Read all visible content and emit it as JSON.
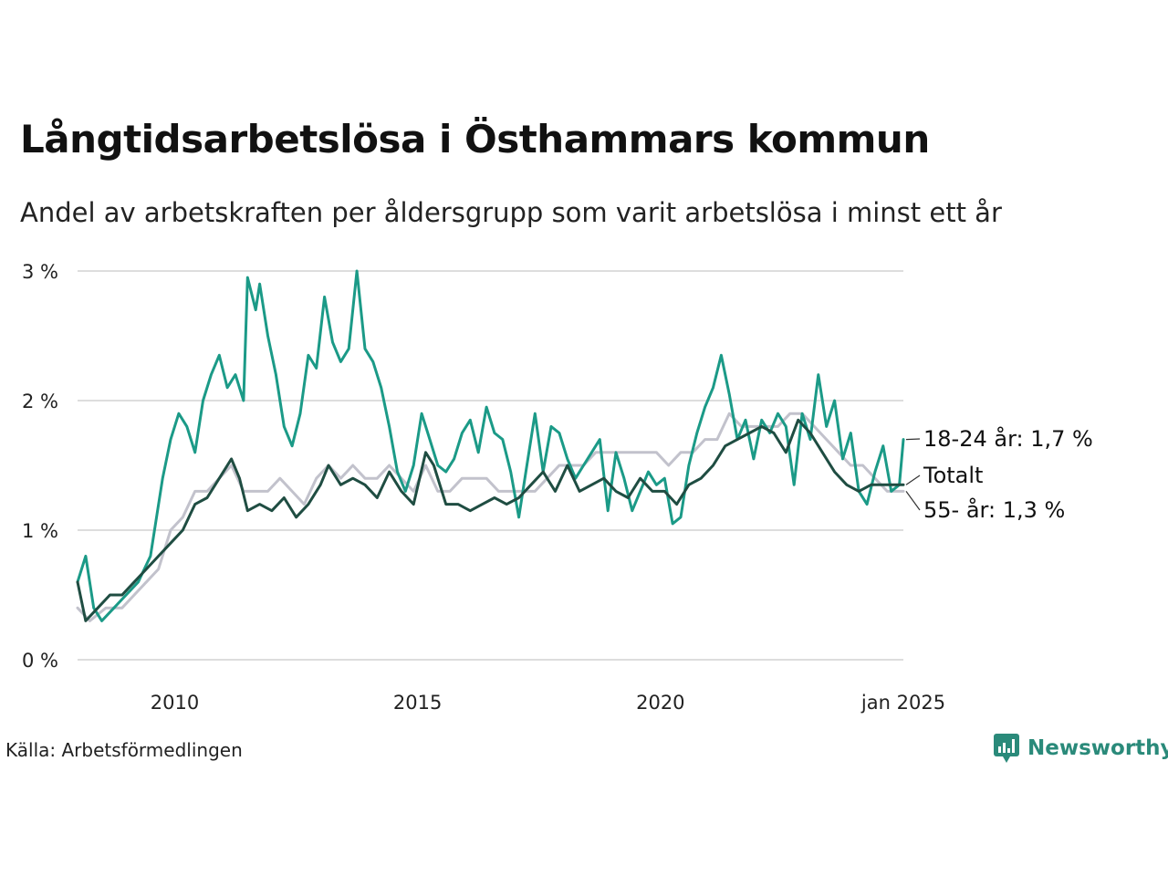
{
  "title": "Långtidsarbetslösa i Östhammars kommun",
  "subtitle": "Andel av arbetskraften per åldersgrupp som varit arbetslösa i minst ett år",
  "source": "Källa: Arbetsförmedlingen",
  "brand": "Newsworthy",
  "colors": {
    "youth": "#1b9a87",
    "total": "#1f4d42",
    "older": "#c2c2cc",
    "grid": "#dddddd",
    "brand": "#2a8a7a"
  },
  "chart_data": {
    "type": "line",
    "x_start": "2008-01",
    "x_end": "2025-01",
    "x_ticks": [
      {
        "date": "2010-01",
        "label": "2010"
      },
      {
        "date": "2015-01",
        "label": "2015"
      },
      {
        "date": "2020-01",
        "label": "2020"
      },
      {
        "date": "2025-01",
        "label": "jan 2025"
      }
    ],
    "y_ticks": [
      {
        "value": 0,
        "label": "0 %"
      },
      {
        "value": 1,
        "label": "1 %"
      },
      {
        "value": 2,
        "label": "2 %"
      },
      {
        "value": 3,
        "label": "3 %"
      }
    ],
    "ylim": [
      0,
      3
    ],
    "grid": true,
    "series": [
      {
        "key": "older",
        "end_label": "55- år: 1,3 %",
        "values": [
          [
            "2008-01",
            0.4
          ],
          [
            "2008-04",
            0.3
          ],
          [
            "2008-08",
            0.4
          ],
          [
            "2008-12",
            0.4
          ],
          [
            "2009-03",
            0.5
          ],
          [
            "2009-06",
            0.6
          ],
          [
            "2009-09",
            0.7
          ],
          [
            "2009-12",
            1.0
          ],
          [
            "2010-03",
            1.1
          ],
          [
            "2010-06",
            1.3
          ],
          [
            "2010-09",
            1.3
          ],
          [
            "2010-12",
            1.4
          ],
          [
            "2011-03",
            1.5
          ],
          [
            "2011-06",
            1.3
          ],
          [
            "2011-09",
            1.3
          ],
          [
            "2011-12",
            1.3
          ],
          [
            "2012-03",
            1.4
          ],
          [
            "2012-06",
            1.3
          ],
          [
            "2012-09",
            1.2
          ],
          [
            "2012-12",
            1.4
          ],
          [
            "2013-03",
            1.5
          ],
          [
            "2013-06",
            1.4
          ],
          [
            "2013-09",
            1.5
          ],
          [
            "2013-12",
            1.4
          ],
          [
            "2014-03",
            1.4
          ],
          [
            "2014-06",
            1.5
          ],
          [
            "2014-09",
            1.4
          ],
          [
            "2014-12",
            1.3
          ],
          [
            "2015-03",
            1.5
          ],
          [
            "2015-06",
            1.3
          ],
          [
            "2015-09",
            1.3
          ],
          [
            "2015-12",
            1.4
          ],
          [
            "2016-03",
            1.4
          ],
          [
            "2016-06",
            1.4
          ],
          [
            "2016-09",
            1.3
          ],
          [
            "2016-12",
            1.3
          ],
          [
            "2017-03",
            1.3
          ],
          [
            "2017-06",
            1.3
          ],
          [
            "2017-09",
            1.4
          ],
          [
            "2017-12",
            1.5
          ],
          [
            "2018-03",
            1.5
          ],
          [
            "2018-06",
            1.5
          ],
          [
            "2018-09",
            1.6
          ],
          [
            "2018-12",
            1.6
          ],
          [
            "2019-03",
            1.6
          ],
          [
            "2019-06",
            1.6
          ],
          [
            "2019-09",
            1.6
          ],
          [
            "2019-12",
            1.6
          ],
          [
            "2020-03",
            1.5
          ],
          [
            "2020-06",
            1.6
          ],
          [
            "2020-09",
            1.6
          ],
          [
            "2020-12",
            1.7
          ],
          [
            "2021-03",
            1.7
          ],
          [
            "2021-06",
            1.9
          ],
          [
            "2021-09",
            1.8
          ],
          [
            "2021-12",
            1.8
          ],
          [
            "2022-03",
            1.8
          ],
          [
            "2022-06",
            1.8
          ],
          [
            "2022-09",
            1.9
          ],
          [
            "2022-12",
            1.9
          ],
          [
            "2023-03",
            1.8
          ],
          [
            "2023-06",
            1.7
          ],
          [
            "2023-09",
            1.6
          ],
          [
            "2023-12",
            1.5
          ],
          [
            "2024-03",
            1.5
          ],
          [
            "2024-06",
            1.4
          ],
          [
            "2024-09",
            1.3
          ],
          [
            "2024-12",
            1.3
          ],
          [
            "2025-01",
            1.3
          ]
        ]
      },
      {
        "key": "youth",
        "end_label": "18-24 år: 1,7 %",
        "values": [
          [
            "2008-01",
            0.6
          ],
          [
            "2008-03",
            0.8
          ],
          [
            "2008-05",
            0.4
          ],
          [
            "2008-07",
            0.3
          ],
          [
            "2008-10",
            0.4
          ],
          [
            "2009-01",
            0.5
          ],
          [
            "2009-04",
            0.6
          ],
          [
            "2009-07",
            0.8
          ],
          [
            "2009-10",
            1.4
          ],
          [
            "2009-12",
            1.7
          ],
          [
            "2010-02",
            1.9
          ],
          [
            "2010-04",
            1.8
          ],
          [
            "2010-06",
            1.6
          ],
          [
            "2010-08",
            2.0
          ],
          [
            "2010-10",
            2.2
          ],
          [
            "2010-12",
            2.35
          ],
          [
            "2011-02",
            2.1
          ],
          [
            "2011-04",
            2.2
          ],
          [
            "2011-06",
            2.0
          ],
          [
            "2011-07",
            2.95
          ],
          [
            "2011-09",
            2.7
          ],
          [
            "2011-10",
            2.9
          ],
          [
            "2011-12",
            2.5
          ],
          [
            "2012-02",
            2.2
          ],
          [
            "2012-04",
            1.8
          ],
          [
            "2012-06",
            1.65
          ],
          [
            "2012-08",
            1.9
          ],
          [
            "2012-10",
            2.35
          ],
          [
            "2012-12",
            2.25
          ],
          [
            "2013-02",
            2.8
          ],
          [
            "2013-04",
            2.45
          ],
          [
            "2013-06",
            2.3
          ],
          [
            "2013-08",
            2.4
          ],
          [
            "2013-10",
            3.0
          ],
          [
            "2013-12",
            2.4
          ],
          [
            "2014-02",
            2.3
          ],
          [
            "2014-04",
            2.1
          ],
          [
            "2014-06",
            1.8
          ],
          [
            "2014-08",
            1.45
          ],
          [
            "2014-10",
            1.3
          ],
          [
            "2014-12",
            1.5
          ],
          [
            "2015-02",
            1.9
          ],
          [
            "2015-04",
            1.7
          ],
          [
            "2015-06",
            1.5
          ],
          [
            "2015-08",
            1.45
          ],
          [
            "2015-10",
            1.55
          ],
          [
            "2015-12",
            1.75
          ],
          [
            "2016-02",
            1.85
          ],
          [
            "2016-04",
            1.6
          ],
          [
            "2016-06",
            1.95
          ],
          [
            "2016-08",
            1.75
          ],
          [
            "2016-10",
            1.7
          ],
          [
            "2016-12",
            1.45
          ],
          [
            "2017-02",
            1.1
          ],
          [
            "2017-04",
            1.5
          ],
          [
            "2017-06",
            1.9
          ],
          [
            "2017-08",
            1.45
          ],
          [
            "2017-10",
            1.8
          ],
          [
            "2017-12",
            1.75
          ],
          [
            "2018-02",
            1.55
          ],
          [
            "2018-04",
            1.4
          ],
          [
            "2018-06",
            1.5
          ],
          [
            "2018-08",
            1.6
          ],
          [
            "2018-10",
            1.7
          ],
          [
            "2018-12",
            1.15
          ],
          [
            "2019-02",
            1.6
          ],
          [
            "2019-04",
            1.4
          ],
          [
            "2019-06",
            1.15
          ],
          [
            "2019-08",
            1.3
          ],
          [
            "2019-10",
            1.45
          ],
          [
            "2019-12",
            1.35
          ],
          [
            "2020-02",
            1.4
          ],
          [
            "2020-04",
            1.05
          ],
          [
            "2020-06",
            1.1
          ],
          [
            "2020-08",
            1.5
          ],
          [
            "2020-10",
            1.75
          ],
          [
            "2020-12",
            1.95
          ],
          [
            "2021-02",
            2.1
          ],
          [
            "2021-04",
            2.35
          ],
          [
            "2021-06",
            2.05
          ],
          [
            "2021-08",
            1.7
          ],
          [
            "2021-10",
            1.85
          ],
          [
            "2021-12",
            1.55
          ],
          [
            "2022-02",
            1.85
          ],
          [
            "2022-04",
            1.75
          ],
          [
            "2022-06",
            1.9
          ],
          [
            "2022-08",
            1.8
          ],
          [
            "2022-10",
            1.35
          ],
          [
            "2022-12",
            1.9
          ],
          [
            "2023-02",
            1.7
          ],
          [
            "2023-04",
            2.2
          ],
          [
            "2023-06",
            1.8
          ],
          [
            "2023-08",
            2.0
          ],
          [
            "2023-10",
            1.55
          ],
          [
            "2023-12",
            1.75
          ],
          [
            "2024-02",
            1.3
          ],
          [
            "2024-04",
            1.2
          ],
          [
            "2024-06",
            1.45
          ],
          [
            "2024-08",
            1.65
          ],
          [
            "2024-10",
            1.3
          ],
          [
            "2024-12",
            1.35
          ],
          [
            "2025-01",
            1.7
          ]
        ]
      },
      {
        "key": "total",
        "end_label": "Totalt",
        "values": [
          [
            "2008-01",
            0.6
          ],
          [
            "2008-03",
            0.3
          ],
          [
            "2008-06",
            0.4
          ],
          [
            "2008-09",
            0.5
          ],
          [
            "2008-12",
            0.5
          ],
          [
            "2009-03",
            0.6
          ],
          [
            "2009-06",
            0.7
          ],
          [
            "2009-09",
            0.8
          ],
          [
            "2009-12",
            0.9
          ],
          [
            "2010-03",
            1.0
          ],
          [
            "2010-06",
            1.2
          ],
          [
            "2010-09",
            1.25
          ],
          [
            "2010-12",
            1.4
          ],
          [
            "2011-03",
            1.55
          ],
          [
            "2011-05",
            1.4
          ],
          [
            "2011-07",
            1.15
          ],
          [
            "2011-10",
            1.2
          ],
          [
            "2012-01",
            1.15
          ],
          [
            "2012-04",
            1.25
          ],
          [
            "2012-07",
            1.1
          ],
          [
            "2012-10",
            1.2
          ],
          [
            "2013-01",
            1.35
          ],
          [
            "2013-03",
            1.5
          ],
          [
            "2013-06",
            1.35
          ],
          [
            "2013-09",
            1.4
          ],
          [
            "2013-12",
            1.35
          ],
          [
            "2014-03",
            1.25
          ],
          [
            "2014-06",
            1.45
          ],
          [
            "2014-09",
            1.3
          ],
          [
            "2014-12",
            1.2
          ],
          [
            "2015-03",
            1.6
          ],
          [
            "2015-05",
            1.5
          ],
          [
            "2015-08",
            1.2
          ],
          [
            "2015-11",
            1.2
          ],
          [
            "2016-02",
            1.15
          ],
          [
            "2016-05",
            1.2
          ],
          [
            "2016-08",
            1.25
          ],
          [
            "2016-11",
            1.2
          ],
          [
            "2017-02",
            1.25
          ],
          [
            "2017-05",
            1.35
          ],
          [
            "2017-08",
            1.45
          ],
          [
            "2017-11",
            1.3
          ],
          [
            "2018-02",
            1.5
          ],
          [
            "2018-05",
            1.3
          ],
          [
            "2018-08",
            1.35
          ],
          [
            "2018-11",
            1.4
          ],
          [
            "2019-02",
            1.3
          ],
          [
            "2019-05",
            1.25
          ],
          [
            "2019-08",
            1.4
          ],
          [
            "2019-11",
            1.3
          ],
          [
            "2020-02",
            1.3
          ],
          [
            "2020-05",
            1.2
          ],
          [
            "2020-08",
            1.35
          ],
          [
            "2020-11",
            1.4
          ],
          [
            "2021-02",
            1.5
          ],
          [
            "2021-05",
            1.65
          ],
          [
            "2021-08",
            1.7
          ],
          [
            "2021-11",
            1.75
          ],
          [
            "2022-02",
            1.8
          ],
          [
            "2022-05",
            1.75
          ],
          [
            "2022-08",
            1.6
          ],
          [
            "2022-11",
            1.85
          ],
          [
            "2023-02",
            1.75
          ],
          [
            "2023-05",
            1.6
          ],
          [
            "2023-08",
            1.45
          ],
          [
            "2023-11",
            1.35
          ],
          [
            "2024-02",
            1.3
          ],
          [
            "2024-05",
            1.35
          ],
          [
            "2024-08",
            1.35
          ],
          [
            "2024-11",
            1.35
          ],
          [
            "2025-01",
            1.35
          ]
        ]
      }
    ]
  }
}
